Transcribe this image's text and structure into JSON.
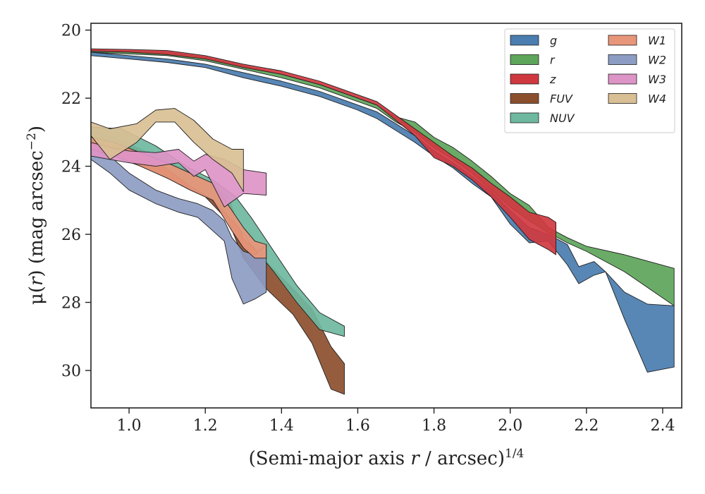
{
  "chart_data": {
    "type": "area",
    "title": "",
    "xlabel": {
      "prefix": "(Semi-major axis ",
      "var": "r",
      "middle": " / arcsec)",
      "exponent": "1/4"
    },
    "ylabel": {
      "mu": "μ(",
      "var": "r",
      "middle": ") (mag arcsec",
      "exponent": "−2",
      "suffix": ")"
    },
    "xlim": [
      0.9,
      2.45
    ],
    "ylim": [
      31.1,
      19.8
    ],
    "y_inverted": true,
    "xticks": [
      1.0,
      1.2,
      1.4,
      1.6,
      1.8,
      2.0,
      2.2,
      2.4
    ],
    "xtick_labels": [
      "1.0",
      "1.2",
      "1.4",
      "1.6",
      "1.8",
      "2.0",
      "2.2",
      "2.4"
    ],
    "yticks": [
      20,
      22,
      24,
      26,
      28,
      30
    ],
    "ytick_labels": [
      "20",
      "22",
      "24",
      "26",
      "28",
      "30"
    ],
    "grid": false,
    "legend_position": "top-right",
    "legend_columns": 2,
    "series": [
      {
        "name": "FUV",
        "color": "#8c4f2e",
        "x": [
          0.9,
          0.97,
          1.05,
          1.12,
          1.2,
          1.26,
          1.3,
          1.36,
          1.43,
          1.48,
          1.53,
          1.565
        ],
        "y_low": [
          22.9,
          23.2,
          23.6,
          23.95,
          24.4,
          24.9,
          26.1,
          26.8,
          27.6,
          28.2,
          29.3,
          29.8
        ],
        "y_high": [
          23.4,
          23.7,
          24.1,
          24.45,
          24.9,
          25.6,
          26.7,
          27.6,
          28.35,
          29.2,
          30.55,
          30.7
        ]
      },
      {
        "name": "NUV",
        "color": "#6fb8a0",
        "x": [
          0.9,
          0.98,
          1.07,
          1.15,
          1.22,
          1.28,
          1.32,
          1.38,
          1.44,
          1.5,
          1.565
        ],
        "y_low": [
          22.85,
          22.9,
          23.4,
          24.0,
          24.4,
          24.9,
          25.5,
          26.5,
          27.5,
          28.3,
          28.7
        ],
        "y_high": [
          23.3,
          23.4,
          23.85,
          24.5,
          25.0,
          25.7,
          26.3,
          27.1,
          28.0,
          28.8,
          29.0
        ]
      },
      {
        "name": "W2",
        "color": "#8d9cc3",
        "x": [
          0.9,
          0.95,
          1.0,
          1.07,
          1.13,
          1.18,
          1.22,
          1.25,
          1.27,
          1.3,
          1.33,
          1.36
        ],
        "y_low": [
          23.35,
          23.7,
          24.2,
          24.7,
          24.95,
          25.1,
          25.3,
          25.6,
          26.1,
          26.5,
          26.6,
          26.3
        ],
        "y_high": [
          23.8,
          24.2,
          24.7,
          25.1,
          25.35,
          25.5,
          25.9,
          26.2,
          27.3,
          28.05,
          27.9,
          27.7
        ]
      },
      {
        "name": "W1",
        "color": "#e8967a",
        "x": [
          0.9,
          0.96,
          1.03,
          1.1,
          1.16,
          1.22,
          1.27,
          1.3,
          1.33,
          1.36
        ],
        "y_low": [
          23.15,
          23.3,
          23.6,
          23.9,
          24.2,
          24.5,
          25.3,
          25.8,
          26.2,
          26.3
        ],
        "y_high": [
          23.5,
          23.7,
          24.0,
          24.35,
          24.7,
          25.0,
          25.9,
          26.4,
          26.7,
          26.7
        ]
      },
      {
        "name": "W3",
        "color": "#dd94c7",
        "x": [
          0.9,
          0.95,
          1.0,
          1.07,
          1.13,
          1.17,
          1.2,
          1.25,
          1.3,
          1.36
        ],
        "y_low": [
          23.3,
          23.45,
          23.55,
          23.6,
          23.5,
          23.85,
          23.65,
          23.8,
          24.1,
          24.2
        ],
        "y_high": [
          23.7,
          23.8,
          23.9,
          24.0,
          23.9,
          24.3,
          24.1,
          25.2,
          24.8,
          24.85
        ]
      },
      {
        "name": "W4",
        "color": "#d9bf94",
        "x": [
          0.9,
          0.95,
          1.02,
          1.07,
          1.12,
          1.17,
          1.22,
          1.27,
          1.3
        ],
        "y_low": [
          22.7,
          22.9,
          22.75,
          22.35,
          22.3,
          22.65,
          23.2,
          23.5,
          23.5
        ],
        "y_high": [
          23.1,
          23.8,
          23.3,
          22.7,
          22.7,
          23.3,
          23.8,
          24.2,
          24.75
        ]
      },
      {
        "name": "g",
        "color": "#4a7db0",
        "x": [
          0.9,
          1.0,
          1.1,
          1.2,
          1.3,
          1.4,
          1.5,
          1.6,
          1.65,
          1.7,
          1.75,
          1.8,
          1.85,
          1.9,
          1.95,
          2.0,
          2.05,
          2.1,
          2.15,
          2.18,
          2.22,
          2.25,
          2.3,
          2.36,
          2.43
        ],
        "y_low": [
          20.65,
          20.75,
          20.85,
          21.0,
          21.25,
          21.5,
          21.8,
          22.2,
          22.4,
          22.75,
          23.1,
          23.55,
          23.9,
          24.3,
          24.75,
          25.3,
          25.8,
          26.0,
          26.3,
          26.95,
          26.8,
          27.1,
          27.7,
          28.05,
          28.1
        ],
        "y_high": [
          20.75,
          20.85,
          20.95,
          21.1,
          21.4,
          21.65,
          21.95,
          22.35,
          22.6,
          22.95,
          23.3,
          23.7,
          24.05,
          24.5,
          24.9,
          25.7,
          26.25,
          26.2,
          26.9,
          27.45,
          27.2,
          27.1,
          28.5,
          30.05,
          29.9
        ]
      },
      {
        "name": "r",
        "color": "#5da55a",
        "x": [
          0.9,
          1.0,
          1.1,
          1.2,
          1.3,
          1.4,
          1.5,
          1.6,
          1.65,
          1.7,
          1.75,
          1.8,
          1.85,
          1.9,
          1.95,
          2.0,
          2.05,
          2.1,
          2.15,
          2.2,
          2.3,
          2.43
        ],
        "y_low": [
          20.6,
          20.62,
          20.65,
          20.8,
          21.05,
          21.3,
          21.6,
          22.0,
          22.2,
          22.55,
          22.7,
          23.15,
          23.45,
          23.85,
          24.3,
          24.8,
          25.15,
          25.8,
          26.1,
          26.35,
          26.6,
          27.0
        ],
        "y_high": [
          20.65,
          20.7,
          20.75,
          20.9,
          21.15,
          21.4,
          21.7,
          22.1,
          22.3,
          22.7,
          23.0,
          23.45,
          23.8,
          24.2,
          24.7,
          25.2,
          25.6,
          25.95,
          26.25,
          26.5,
          27.1,
          28.1
        ]
      },
      {
        "name": "z",
        "color": "#d03840",
        "x": [
          0.9,
          1.0,
          1.1,
          1.2,
          1.3,
          1.4,
          1.5,
          1.6,
          1.65,
          1.7,
          1.75,
          1.8,
          1.85,
          1.9,
          1.95,
          2.0,
          2.05,
          2.1,
          2.12
        ],
        "y_low": [
          20.55,
          20.57,
          20.6,
          20.75,
          21.0,
          21.2,
          21.5,
          21.9,
          22.1,
          22.5,
          22.9,
          23.3,
          23.7,
          24.05,
          24.5,
          24.9,
          25.35,
          25.5,
          25.65
        ],
        "y_high": [
          20.62,
          20.65,
          20.72,
          20.85,
          21.1,
          21.3,
          21.6,
          22.0,
          22.2,
          22.65,
          23.1,
          23.75,
          24.0,
          24.4,
          24.9,
          25.5,
          26.15,
          26.45,
          26.6
        ]
      }
    ],
    "legend_order": [
      "g",
      "r",
      "z",
      "FUV",
      "NUV",
      "W1",
      "W2",
      "W3",
      "W4"
    ]
  }
}
